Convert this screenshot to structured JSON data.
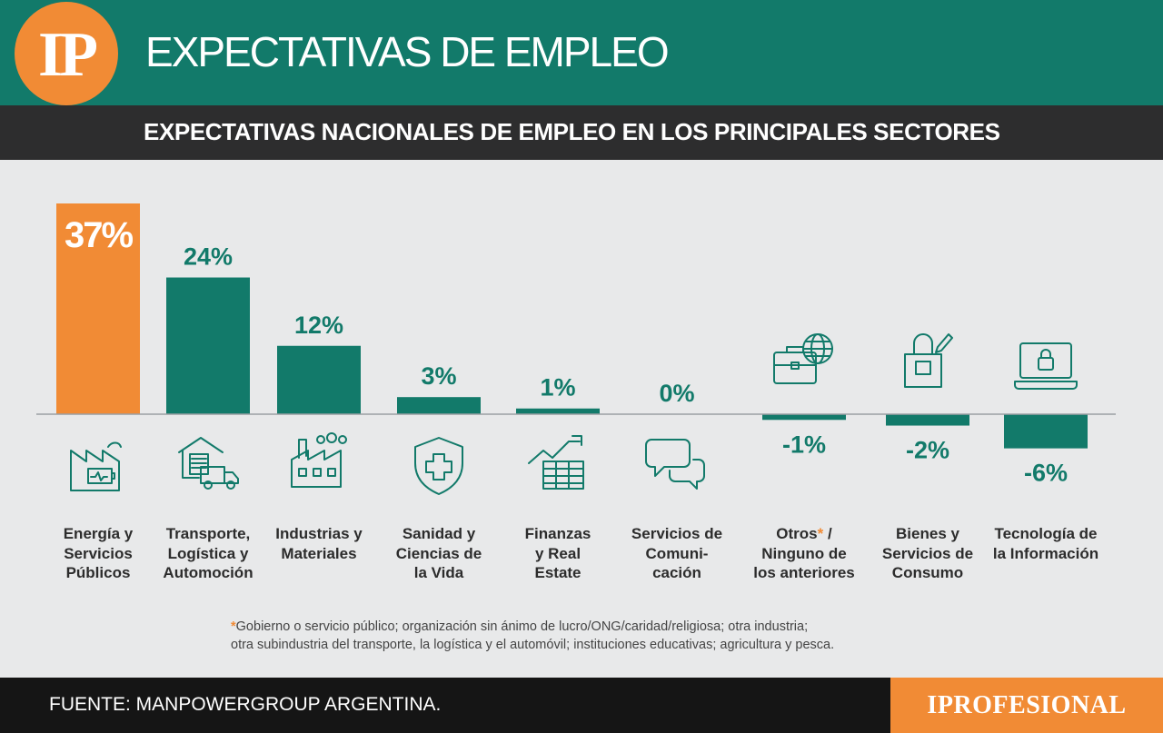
{
  "header": {
    "logo": "IP",
    "title": "EXPECTATIVAS DE EMPLEO",
    "subtitle": "EXPECTATIVAS NACIONALES DE EMPLEO EN LOS PRINCIPALES SECTORES"
  },
  "colors": {
    "teal": "#127a6a",
    "orange": "#f18b35",
    "dark": "#2d2d2e",
    "background": "#e8e9ea"
  },
  "chart_data": {
    "type": "bar",
    "title": "EXPECTATIVAS NACIONALES DE EMPLEO EN LOS PRINCIPALES SECTORES",
    "categories": [
      "Energía y Servicios Públicos",
      "Transporte, Logística y Automoción",
      "Industrias y Materiales",
      "Sanidad y Ciencias de la Vida",
      "Finanzas y Real Estate",
      "Servicios de Comunicación",
      "Otros* / Ninguno de los anteriores",
      "Bienes y Servicios de Consumo",
      "Tecnología de la Información"
    ],
    "values": [
      37,
      24,
      12,
      3,
      1,
      0,
      -1,
      -2,
      -6
    ],
    "value_labels": [
      "37%",
      "24%",
      "12%",
      "3%",
      "1%",
      "0%",
      "-1%",
      "-2%",
      "-6%"
    ],
    "highlight_index": 0,
    "ylim": [
      -6,
      37
    ],
    "grid": false,
    "icons": [
      "energy-icon",
      "transport-icon",
      "factory-icon",
      "health-shield-icon",
      "finance-chart-icon",
      "chat-bubbles-icon",
      "briefcase-globe-icon",
      "shopping-bag-icon",
      "laptop-lock-icon"
    ]
  },
  "labels": [
    [
      "Energía y",
      "Servicios",
      "Públicos"
    ],
    [
      "Transporte,",
      "Logística y",
      "Automoción"
    ],
    [
      "Industrias y",
      "Materiales"
    ],
    [
      "Sanidad y",
      "Ciencias de",
      "la Vida"
    ],
    [
      "Finanzas",
      "y Real",
      "Estate"
    ],
    [
      "Servicios de",
      "Comuni-",
      "cación"
    ],
    [
      "Otros* /",
      "Ninguno de",
      "los anteriores"
    ],
    [
      "Bienes y",
      "Servicios de",
      "Consumo"
    ],
    [
      "Tecnología de",
      "la Información"
    ]
  ],
  "footnote": {
    "marker": "*",
    "line1": "Gobierno o servicio público; organización sin ánimo de lucro/ONG/caridad/religiosa; otra industria;",
    "line2": "otra subindustria del transporte, la logística y el automóvil; instituciones educativas; agricultura y pesca."
  },
  "footer": {
    "source": "FUENTE: MANPOWERGROUP ARGENTINA.",
    "brand": "IPROFESIONAL"
  }
}
